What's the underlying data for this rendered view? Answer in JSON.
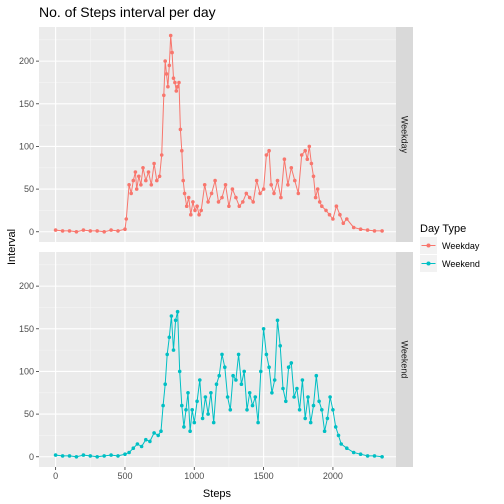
{
  "chart_data": {
    "type": "line",
    "title": "No. of Steps interval per day",
    "xlabel": "Steps",
    "ylabel": "Interval",
    "xlim": [
      -120,
      2455
    ],
    "ylim": [
      -12,
      240
    ],
    "xticks": [
      0,
      500,
      1000,
      1500,
      2000
    ],
    "xtick_labels": [
      "0",
      "500",
      "1000",
      "1500",
      "2000"
    ],
    "yticks": [
      0,
      50,
      100,
      150,
      200
    ],
    "ytick_labels": [
      "0",
      "50",
      "100",
      "150",
      "200"
    ],
    "grid": true,
    "legend": {
      "title": "Day Type",
      "position": "right"
    },
    "panels": [
      {
        "strip": "Weekday",
        "series": {
          "name": "Weekday",
          "color": "#F8766D",
          "x": [
            0,
            50,
            100,
            150,
            200,
            250,
            300,
            350,
            400,
            450,
            500,
            510,
            530,
            545,
            560,
            575,
            585,
            600,
            615,
            630,
            650,
            670,
            690,
            710,
            730,
            750,
            765,
            780,
            790,
            800,
            810,
            820,
            830,
            840,
            850,
            860,
            870,
            880,
            890,
            900,
            910,
            920,
            930,
            945,
            960,
            975,
            990,
            1005,
            1020,
            1035,
            1050,
            1075,
            1100,
            1125,
            1150,
            1175,
            1200,
            1225,
            1250,
            1275,
            1300,
            1325,
            1350,
            1375,
            1400,
            1425,
            1450,
            1475,
            1500,
            1520,
            1540,
            1555,
            1575,
            1600,
            1625,
            1650,
            1675,
            1700,
            1725,
            1750,
            1775,
            1800,
            1815,
            1830,
            1845,
            1860,
            1875,
            1890,
            1905,
            1920,
            1950,
            1975,
            2000,
            2025,
            2050,
            2075,
            2100,
            2150,
            2200,
            2250,
            2300,
            2355
          ],
          "y": [
            2,
            1,
            1,
            0,
            2,
            1,
            1,
            0,
            2,
            1,
            3,
            15,
            55,
            45,
            60,
            70,
            50,
            65,
            55,
            75,
            60,
            70,
            55,
            80,
            60,
            65,
            90,
            160,
            200,
            185,
            170,
            195,
            230,
            210,
            180,
            175,
            165,
            170,
            175,
            120,
            95,
            60,
            45,
            30,
            40,
            20,
            35,
            25,
            30,
            20,
            25,
            55,
            35,
            45,
            60,
            35,
            40,
            55,
            30,
            50,
            40,
            30,
            35,
            45,
            40,
            35,
            60,
            45,
            50,
            90,
            95,
            55,
            45,
            60,
            40,
            85,
            55,
            75,
            60,
            45,
            90,
            95,
            85,
            100,
            80,
            65,
            40,
            50,
            35,
            30,
            25,
            20,
            15,
            30,
            20,
            10,
            15,
            5,
            3,
            2,
            1,
            1
          ]
        }
      },
      {
        "strip": "Weekend",
        "series": {
          "name": "Weekend",
          "color": "#00BFC4",
          "x": [
            0,
            50,
            100,
            150,
            200,
            250,
            300,
            350,
            400,
            450,
            500,
            530,
            560,
            590,
            620,
            650,
            680,
            710,
            740,
            760,
            775,
            790,
            805,
            820,
            835,
            850,
            865,
            880,
            895,
            910,
            925,
            940,
            955,
            970,
            985,
            1000,
            1020,
            1040,
            1060,
            1080,
            1100,
            1120,
            1140,
            1160,
            1180,
            1200,
            1220,
            1240,
            1260,
            1280,
            1300,
            1320,
            1340,
            1360,
            1380,
            1400,
            1420,
            1440,
            1460,
            1480,
            1500,
            1520,
            1540,
            1560,
            1580,
            1600,
            1620,
            1640,
            1660,
            1680,
            1700,
            1720,
            1740,
            1760,
            1780,
            1800,
            1820,
            1840,
            1860,
            1880,
            1900,
            1920,
            1940,
            1960,
            1980,
            2000,
            2020,
            2040,
            2060,
            2100,
            2150,
            2200,
            2250,
            2300,
            2355
          ],
          "y": [
            2,
            1,
            1,
            0,
            2,
            1,
            0,
            1,
            2,
            1,
            3,
            5,
            10,
            15,
            12,
            20,
            18,
            28,
            25,
            30,
            60,
            85,
            120,
            140,
            165,
            125,
            160,
            170,
            100,
            60,
            35,
            55,
            75,
            30,
            55,
            40,
            65,
            90,
            45,
            70,
            50,
            75,
            40,
            85,
            95,
            120,
            105,
            70,
            55,
            95,
            90,
            120,
            85,
            100,
            55,
            75,
            60,
            70,
            40,
            100,
            150,
            120,
            105,
            75,
            90,
            160,
            130,
            80,
            65,
            105,
            110,
            70,
            80,
            55,
            90,
            45,
            70,
            40,
            60,
            95,
            65,
            55,
            30,
            45,
            70,
            55,
            35,
            25,
            15,
            10,
            5,
            3,
            1,
            1,
            0
          ]
        }
      }
    ]
  }
}
